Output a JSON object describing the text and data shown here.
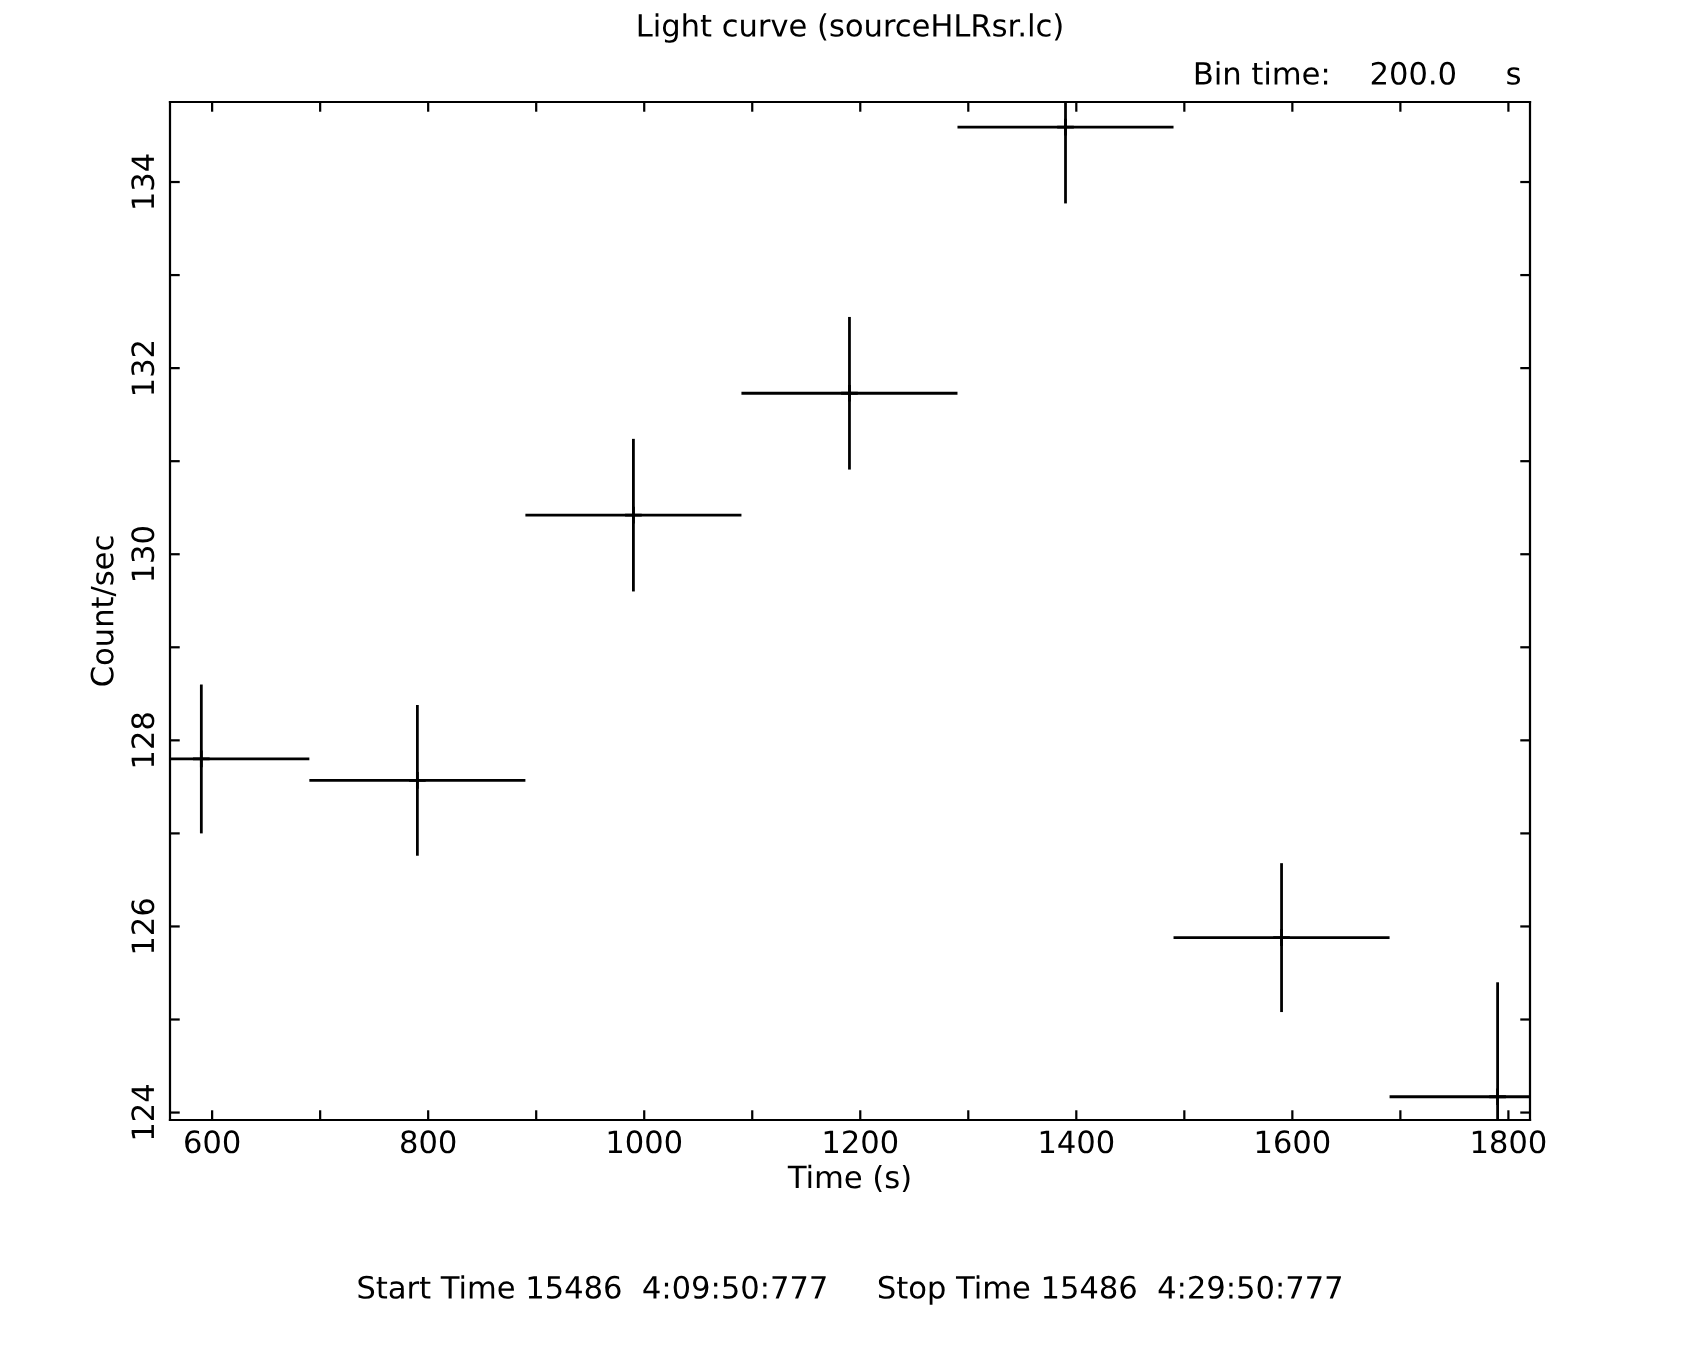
{
  "chart_data": {
    "type": "scatter",
    "title": "Light curve (sourceHLRsr.lc)",
    "xlabel": "Time (s)",
    "ylabel": "Count/sec",
    "annotations": [
      "Bin time:    200.0     s",
      "Start Time 15486  4:09:50:777     Stop Time 15486  4:29:50:777"
    ],
    "series": [
      {
        "color": "#000000",
        "x": [
          590,
          790,
          990,
          1190,
          1390,
          1590,
          1790
        ],
        "values": [
          127.8,
          127.57,
          130.42,
          131.73,
          134.59,
          125.88,
          124.17
        ],
        "errors": [
          0.8,
          0.81,
          0.82,
          0.82,
          0.82,
          0.8,
          1.23
        ],
        "xerrors": [
          100,
          100,
          100,
          100,
          100,
          100,
          100
        ]
      }
    ],
    "marker": "cross",
    "xlim": [
      561,
      1820
    ],
    "ylim": [
      123.92,
      134.86
    ],
    "xticks": [
      600,
      {
        "value": 700,
        "label": null
      },
      800,
      {
        "value": 900,
        "label": null
      },
      1000,
      {
        "value": 1100,
        "label": null
      },
      1200,
      {
        "value": 1300,
        "label": null
      },
      1400,
      {
        "value": 1500,
        "label": null
      },
      1600,
      {
        "value": 1700,
        "label": null
      },
      1800
    ],
    "yticks": [
      124,
      {
        "value": 125,
        "label": null
      },
      126,
      {
        "value": 127,
        "label": null
      },
      128,
      {
        "value": 129,
        "label": null
      },
      130,
      {
        "value": 131,
        "label": null
      },
      132,
      {
        "value": 133,
        "label": null
      },
      134
    ],
    "grid": false,
    "legend": false
  }
}
